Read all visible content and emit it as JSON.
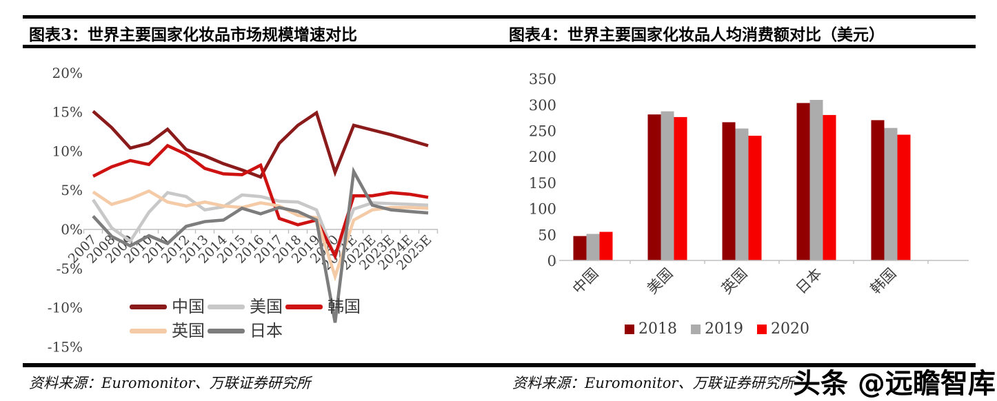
{
  "panels": {
    "left": {
      "header": "图表3：世界主要国家化妆品市场规模增速对比",
      "source": "资料来源：Euromonitor、万联证券研究所"
    },
    "right": {
      "header": "图表4：世界主要国家化妆品人均消费额对比（美元）",
      "source": "资料来源：Euromonitor、万联证券研究所"
    }
  },
  "watermark": "头条 @远瞻智库",
  "chart_data": [
    {
      "type": "line",
      "title": "世界主要国家化妆品市场规模增速对比",
      "x": [
        "2007",
        "2008",
        "2009",
        "2010",
        "2011",
        "2012",
        "2013",
        "2014",
        "2015",
        "2016",
        "2017",
        "2018",
        "2019",
        "2020",
        "2021E",
        "2022E",
        "2023E",
        "2024E",
        "2025E"
      ],
      "ylim": [
        -15,
        20
      ],
      "ytick_values": [
        20,
        15,
        10,
        5,
        0,
        -5,
        -10,
        -15
      ],
      "ytick_labels": [
        "20%",
        "15%",
        "10%",
        "5%",
        "0%",
        "-5%",
        "-10%",
        "-15%"
      ],
      "grid": false,
      "legend_position": "inside-bottom-left",
      "series": [
        {
          "name": "中国",
          "color": "#8B1B1B",
          "values": [
            15.1,
            13.0,
            10.4,
            11.0,
            12.8,
            10.2,
            9.4,
            8.4,
            7.6,
            6.7,
            11.0,
            13.3,
            14.9,
            7.3,
            13.3,
            12.7,
            12.1,
            11.4,
            10.7
          ]
        },
        {
          "name": "美国",
          "color": "#C8C8C8",
          "values": [
            3.8,
            0.2,
            -1.5,
            2.2,
            4.7,
            4.2,
            2.5,
            2.9,
            4.4,
            4.2,
            3.6,
            3.5,
            2.5,
            -3.5,
            2.6,
            3.4,
            3.3,
            3.2,
            3.1
          ]
        },
        {
          "name": "韩国",
          "color": "#CE1212",
          "values": [
            6.8,
            8.0,
            8.8,
            8.3,
            10.7,
            9.6,
            7.8,
            7.1,
            7.0,
            8.2,
            1.4,
            0.6,
            1.2,
            -3.4,
            4.3,
            4.3,
            4.7,
            4.5,
            4.1
          ]
        },
        {
          "name": "英国",
          "color": "#F4CBA6",
          "values": [
            4.8,
            3.2,
            3.9,
            4.9,
            3.5,
            3.0,
            3.5,
            3.0,
            2.8,
            3.4,
            3.0,
            1.8,
            1.5,
            -6.0,
            1.2,
            2.5,
            2.8,
            2.8,
            2.7
          ]
        },
        {
          "name": "日本",
          "color": "#7D7D7D",
          "values": [
            1.7,
            -0.9,
            -2.1,
            -0.8,
            -1.8,
            0.4,
            1.0,
            1.2,
            2.7,
            2.0,
            2.8,
            2.3,
            1.2,
            -11.9,
            7.4,
            3.1,
            2.5,
            2.3,
            2.1
          ]
        }
      ],
      "legend_rows": [
        [
          "中国",
          "美国",
          "韩国"
        ],
        [
          "英国",
          "日本"
        ]
      ]
    },
    {
      "type": "bar",
      "title": "世界主要国家化妆品人均消费额对比（美元）",
      "categories": [
        "中国",
        "美国",
        "英国",
        "日本",
        "韩国"
      ],
      "ylim": [
        0,
        350
      ],
      "ytick_values": [
        0,
        50,
        100,
        150,
        200,
        250,
        300,
        350
      ],
      "grid": false,
      "legend_position": "bottom",
      "series": [
        {
          "name": "2018",
          "color": "#930000",
          "values": [
            47,
            281,
            266,
            303,
            270
          ]
        },
        {
          "name": "2019",
          "color": "#ACACAC",
          "values": [
            51,
            287,
            254,
            309,
            255
          ]
        },
        {
          "name": "2020",
          "color": "#F70000",
          "values": [
            55,
            276,
            240,
            280,
            242
          ]
        }
      ]
    }
  ]
}
